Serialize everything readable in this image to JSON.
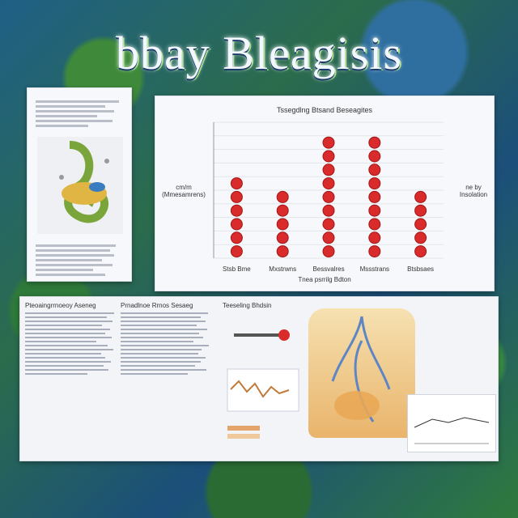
{
  "title": "bbay Bleagisis",
  "chart": {
    "title": "Tssegdlng Btsand Beseagites",
    "ylabel": "cm/m (Mmesamrens)",
    "yr_label": "ne by Insolation",
    "xlabel": "Tnea psrrilg Bdton",
    "chart_data": {
      "type": "scatter",
      "categories": [
        "Stsb Bme",
        "Mxstrwns",
        "Bessvalres",
        "Mssstrans",
        "Btsbsaes"
      ],
      "series": [
        {
          "name": "",
          "values": [
            6,
            5,
            9,
            9,
            5
          ]
        }
      ],
      "ylim": [
        0,
        10
      ],
      "marker_color": "#d92b2b",
      "grid": true
    }
  },
  "left_doc": {
    "header": "",
    "lines_top": 6,
    "lines_bottom": 7
  },
  "bottom_doc": {
    "col1_header": "Pteoaingrrnoeoy Aseneg",
    "col2_header": "Prnadlnoe Rrnos Sesaeg",
    "col3_header": "Teeseling Bhdsin"
  }
}
